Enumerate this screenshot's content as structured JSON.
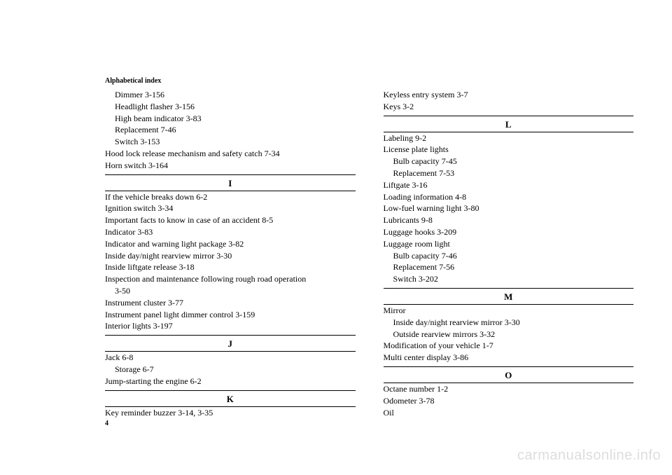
{
  "header": "Alphabetical index",
  "pagenum": "4",
  "watermark": "carmanualsonline.info",
  "left": {
    "top_entries": [
      {
        "text": "Dimmer   3-156",
        "sub": true
      },
      {
        "text": "Headlight flasher   3-156",
        "sub": true
      },
      {
        "text": "High beam indicator   3-83",
        "sub": true
      },
      {
        "text": "Replacement   7-46",
        "sub": true
      },
      {
        "text": "Switch   3-153",
        "sub": true
      },
      {
        "text": "Hood lock release mechanism and safety catch   7-34",
        "sub": false
      },
      {
        "text": "Horn switch   3-164",
        "sub": false
      }
    ],
    "sections": [
      {
        "letter": "I",
        "entries": [
          {
            "text": "If the vehicle breaks down   6-2",
            "sub": false
          },
          {
            "text": "Ignition switch   3-34",
            "sub": false
          },
          {
            "text": "Important facts to know in case of an accident   8-5",
            "sub": false
          },
          {
            "text": "Indicator   3-83",
            "sub": false
          },
          {
            "text": "Indicator and warning light package   3-82",
            "sub": false
          },
          {
            "text": "Inside day/night rearview mirror   3-30",
            "sub": false
          },
          {
            "text": "Inside liftgate release   3-18",
            "sub": false
          },
          {
            "text": "Inspection and maintenance following rough road operation ",
            "sub": false
          },
          {
            "text": "3-50",
            "sub": true
          },
          {
            "text": "Instrument cluster   3-77",
            "sub": false
          },
          {
            "text": "Instrument panel light dimmer control   3-159",
            "sub": false
          },
          {
            "text": "Interior lights   3-197",
            "sub": false
          }
        ]
      },
      {
        "letter": "J",
        "entries": [
          {
            "text": "Jack   6-8",
            "sub": false
          },
          {
            "text": "Storage   6-7",
            "sub": true
          },
          {
            "text": "Jump-starting the engine   6-2",
            "sub": false
          }
        ]
      },
      {
        "letter": "K",
        "entries": [
          {
            "text": "Key reminder buzzer   3-14, 3-35",
            "sub": false
          }
        ]
      }
    ]
  },
  "right": {
    "top_entries": [
      {
        "text": "Keyless entry system   3-7",
        "sub": false
      },
      {
        "text": "Keys   3-2",
        "sub": false
      }
    ],
    "sections": [
      {
        "letter": "L",
        "entries": [
          {
            "text": "Labeling   9-2",
            "sub": false
          },
          {
            "text": "License plate lights",
            "sub": false
          },
          {
            "text": "Bulb capacity   7-45",
            "sub": true
          },
          {
            "text": "Replacement   7-53",
            "sub": true
          },
          {
            "text": "Liftgate   3-16",
            "sub": false
          },
          {
            "text": "Loading information   4-8",
            "sub": false
          },
          {
            "text": "Low-fuel warning light   3-80",
            "sub": false
          },
          {
            "text": "Lubricants   9-8",
            "sub": false
          },
          {
            "text": "Luggage hooks   3-209",
            "sub": false
          },
          {
            "text": "Luggage room light",
            "sub": false
          },
          {
            "text": "Bulb capacity   7-46",
            "sub": true
          },
          {
            "text": "Replacement   7-56",
            "sub": true
          },
          {
            "text": "Switch   3-202",
            "sub": true
          }
        ]
      },
      {
        "letter": "M",
        "entries": [
          {
            "text": "Mirror",
            "sub": false
          },
          {
            "text": "Inside day/night rearview mirror   3-30",
            "sub": true
          },
          {
            "text": "Outside rearview mirrors   3-32",
            "sub": true
          },
          {
            "text": "Modification of your vehicle   1-7",
            "sub": false
          },
          {
            "text": "Multi center display   3-86",
            "sub": false
          }
        ]
      },
      {
        "letter": "O",
        "entries": [
          {
            "text": "Octane number   1-2",
            "sub": false
          },
          {
            "text": "Odometer   3-78",
            "sub": false
          },
          {
            "text": "Oil",
            "sub": false
          }
        ]
      }
    ]
  }
}
